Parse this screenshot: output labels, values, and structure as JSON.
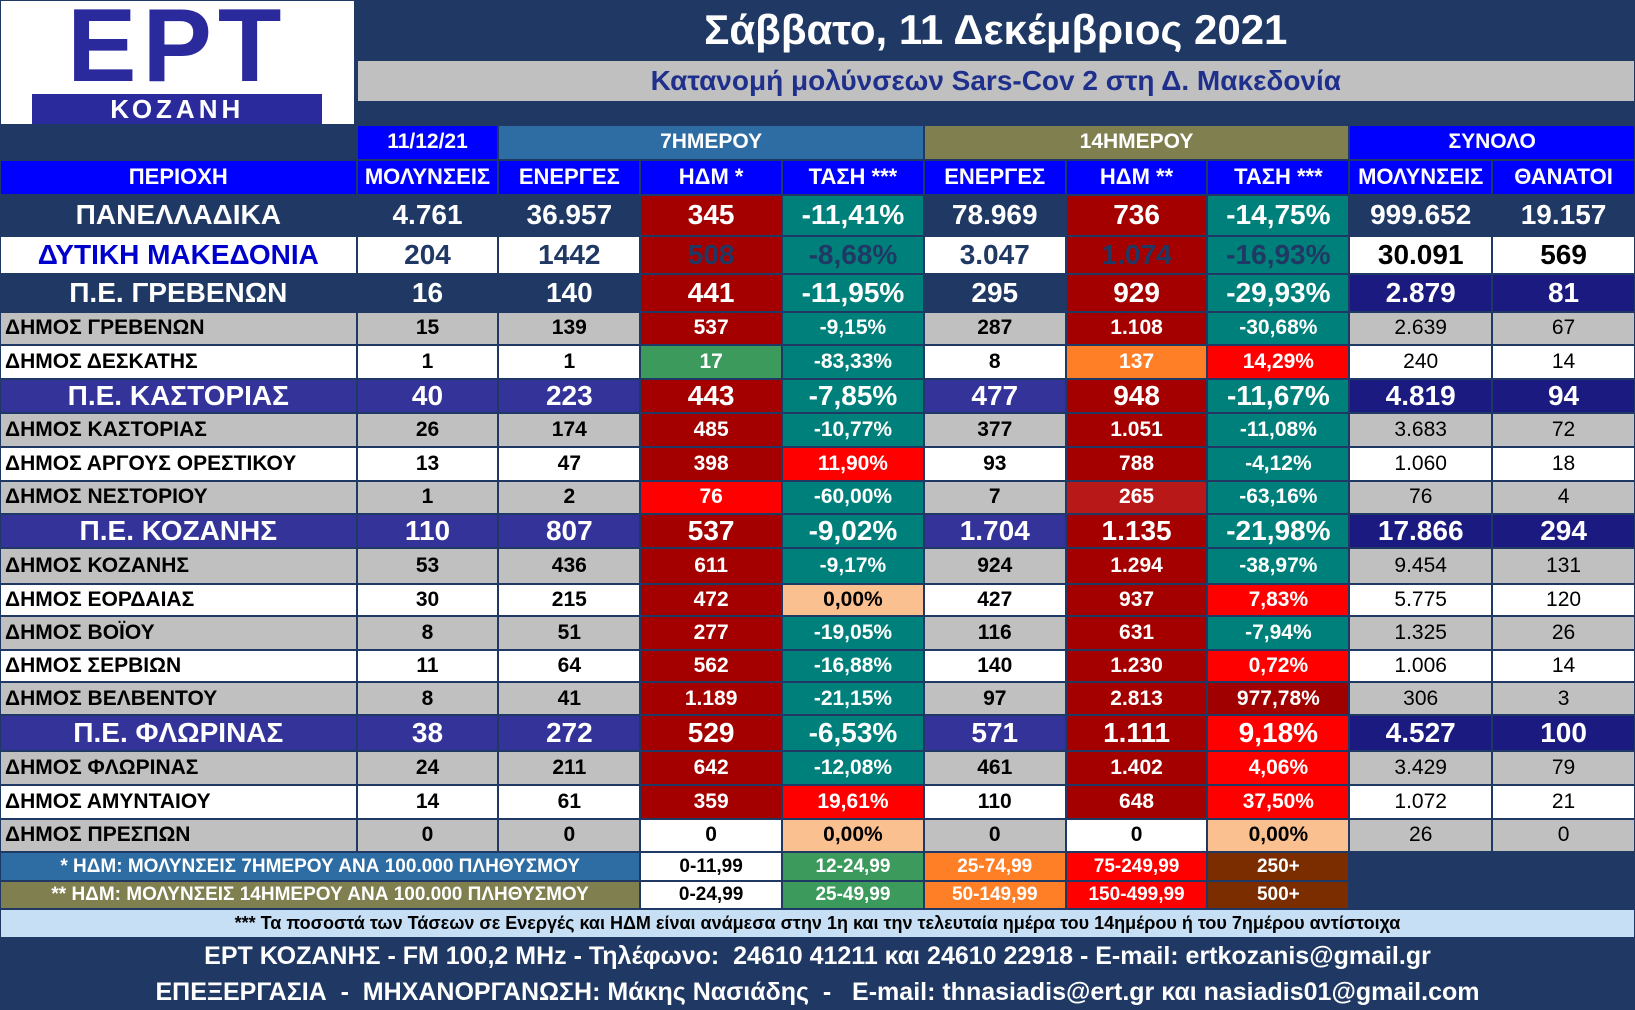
{
  "header": {
    "logo": "ΕΡΤ",
    "logo_subtitle": "ΚΟΖΑΝΗ",
    "date": "Σάββατο, 11 Δεκέμβριος 2021",
    "subtitle": "Κατανομή μολύνσεων Sars-Cov 2 στη Δ. Μακεδονία"
  },
  "table": {
    "groups": [
      "11/12/21",
      "7ΗΜΕΡΟΥ",
      "14ΗΜΕΡΟΥ",
      "ΣΥΝΟΛΟ"
    ],
    "columns": [
      "ΠΕΡΙΟΧΗ",
      "ΜΟΛΥΝΣΕΙΣ",
      "ΕΝΕΡΓΕΣ",
      "ΗΔΜ *",
      "ΤΑΣΗ ***",
      "ΕΝΕΡΓΕΣ",
      "ΗΔΜ **",
      "ΤΑΣΗ ***",
      "ΜΟΛΥΝΣΕΙΣ",
      "ΘΑΝΑΤΟΙ"
    ],
    "rows": [
      [
        "ΠΑΝΕΛΛΑΔΙΚΑ",
        "4.761",
        "36.957",
        "345",
        "-11,41%",
        "78.969",
        "736",
        "-14,75%",
        "999.652",
        "19.157"
      ],
      [
        "ΔΥΤΙΚΗ ΜΑΚΕΔΟΝΙΑ",
        "204",
        "1442",
        "508",
        "-8,68%",
        "3.047",
        "1.074",
        "-16,93%",
        "30.091",
        "569"
      ],
      [
        "Π.Ε. ΓΡΕΒΕΝΩΝ",
        "16",
        "140",
        "441",
        "-11,95%",
        "295",
        "929",
        "-29,93%",
        "2.879",
        "81"
      ],
      [
        "ΔΗΜΟΣ ΓΡΕΒΕΝΩΝ",
        "15",
        "139",
        "537",
        "-9,15%",
        "287",
        "1.108",
        "-30,68%",
        "2.639",
        "67"
      ],
      [
        "ΔΗΜΟΣ ΔΕΣΚΑΤΗΣ",
        "1",
        "1",
        "17",
        "-83,33%",
        "8",
        "137",
        "14,29%",
        "240",
        "14"
      ],
      [
        "Π.Ε. ΚΑΣΤΟΡΙΑΣ",
        "40",
        "223",
        "443",
        "-7,85%",
        "477",
        "948",
        "-11,67%",
        "4.819",
        "94"
      ],
      [
        "ΔΗΜΟΣ ΚΑΣΤΟΡΙΑΣ",
        "26",
        "174",
        "485",
        "-10,77%",
        "377",
        "1.051",
        "-11,08%",
        "3.683",
        "72"
      ],
      [
        "ΔΗΜΟΣ ΑΡΓΟΥΣ ΟΡΕΣΤΙΚΟΥ",
        "13",
        "47",
        "398",
        "11,90%",
        "93",
        "788",
        "-4,12%",
        "1.060",
        "18"
      ],
      [
        "ΔΗΜΟΣ ΝΕΣΤΟΡΙΟΥ",
        "1",
        "2",
        "76",
        "-60,00%",
        "7",
        "265",
        "-63,16%",
        "76",
        "4"
      ],
      [
        "Π.Ε. ΚΟΖΑΝΗΣ",
        "110",
        "807",
        "537",
        "-9,02%",
        "1.704",
        "1.135",
        "-21,98%",
        "17.866",
        "294"
      ],
      [
        "ΔΗΜΟΣ ΚΟΖΑΝΗΣ",
        "53",
        "436",
        "611",
        "-9,17%",
        "924",
        "1.294",
        "-38,97%",
        "9.454",
        "131"
      ],
      [
        "ΔΗΜΟΣ ΕΟΡΔΑΙΑΣ",
        "30",
        "215",
        "472",
        "0,00%",
        "427",
        "937",
        "7,83%",
        "5.775",
        "120"
      ],
      [
        "ΔΗΜΟΣ ΒΟΪΟΥ",
        "8",
        "51",
        "277",
        "-19,05%",
        "116",
        "631",
        "-7,94%",
        "1.325",
        "26"
      ],
      [
        "ΔΗΜΟΣ ΣΕΡΒΙΩΝ",
        "11",
        "64",
        "562",
        "-16,88%",
        "140",
        "1.230",
        "0,72%",
        "1.006",
        "14"
      ],
      [
        "ΔΗΜΟΣ ΒΕΛΒΕΝΤΟΥ",
        "8",
        "41",
        "1.189",
        "-21,15%",
        "97",
        "2.813",
        "977,78%",
        "306",
        "3"
      ],
      [
        "Π.Ε. ΦΛΩΡΙΝΑΣ",
        "38",
        "272",
        "529",
        "-6,53%",
        "571",
        "1.111",
        "9,18%",
        "4.527",
        "100"
      ],
      [
        "ΔΗΜΟΣ ΦΛΩΡΙΝΑΣ",
        "24",
        "211",
        "642",
        "-12,08%",
        "461",
        "1.402",
        "4,06%",
        "3.429",
        "79"
      ],
      [
        "ΔΗΜΟΣ ΑΜΥΝΤΑΙΟΥ",
        "14",
        "61",
        "359",
        "19,61%",
        "110",
        "648",
        "37,50%",
        "1.072",
        "21"
      ],
      [
        "ΔΗΜΟΣ ΠΡΕΣΠΩΝ",
        "0",
        "0",
        "0",
        "0,00%",
        "0",
        "0",
        "0,00%",
        "26",
        "0"
      ]
    ]
  },
  "legend": [
    {
      "label": "* ΗΔΜ: ΜΟΛΥΝΣΕΙΣ 7ΗΜΕΡΟΥ ΑΝΑ 100.000 ΠΛΗΘΥΣΜΟΥ",
      "bins": [
        "0-11,99",
        "12-24,99",
        "25-74,99",
        "75-249,99",
        "250+"
      ]
    },
    {
      "label": "** ΗΔΜ: ΜΟΛΥΝΣΕΙΣ 14ΗΜΕΡΟΥ ΑΝΑ 100.000 ΠΛΗΘΥΣΜΟΥ",
      "bins": [
        "0-24,99",
        "25-49,99",
        "50-149,99",
        "150-499,99",
        "500+"
      ]
    }
  ],
  "footnote": "*** Τα ποσοστά των Τάσεων σε Ενεργές και ΗΔΜ είναι ανάμεσα στην 1η και την τελευταία ημέρα του 14ημέρου ή του 7ημέρου αντίστοιχα",
  "footer": [
    "ΕΡΤ ΚΟΖΑΝΗΣ - FM 100,2 MHz - Τηλέφωνο:  24610 41211 και 24610 22918 - E-mail: ertkozanis@gmail.gr",
    "ΕΠΕΞΕΡΓΑΣΙΑ  -  ΜΗΧΑΝΟΡΓΑΝΩΣΗ: Μάκης Νασιάδης  -   E-mail: thnasiadis@ert.gr και nasiadis01@gmail.com"
  ]
}
